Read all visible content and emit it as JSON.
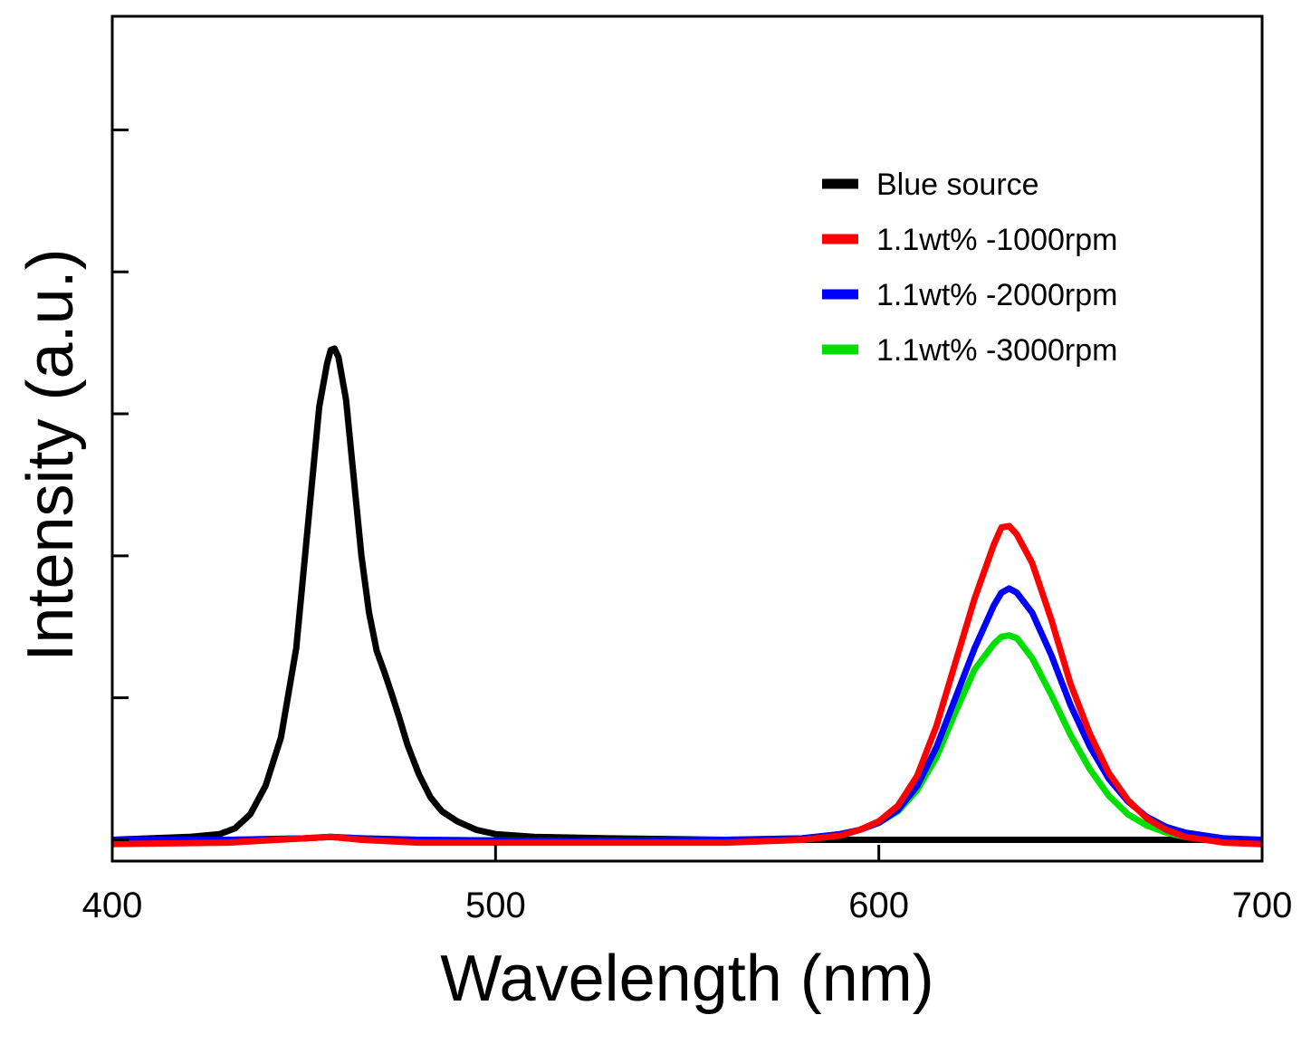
{
  "chart_data": {
    "type": "line",
    "xlabel": "Wavelength (nm)",
    "ylabel": "Intensity (a.u.)",
    "xlim": [
      400,
      700
    ],
    "ylim": [
      -0.15,
      5.8
    ],
    "x_ticks": [
      400,
      500,
      600,
      700
    ],
    "y_ticks": [
      0,
      1,
      2,
      3,
      4,
      5
    ],
    "y_tick_labels_shown": false,
    "grid": false,
    "legend_position": "top-right",
    "series": [
      {
        "name": "Blue source",
        "color": "#000000",
        "x": [
          400,
          410,
          420,
          428,
          432,
          436,
          440,
          444,
          448,
          451,
          454,
          456,
          457,
          458,
          459,
          461,
          463,
          465,
          467,
          469,
          471,
          473,
          475,
          477,
          480,
          483,
          486,
          490,
          495,
          500,
          510,
          530,
          560,
          600,
          650,
          700
        ],
        "y": [
          0,
          0.01,
          0.02,
          0.04,
          0.08,
          0.18,
          0.38,
          0.72,
          1.35,
          2.2,
          3.05,
          3.35,
          3.45,
          3.46,
          3.4,
          3.1,
          2.55,
          2.0,
          1.6,
          1.33,
          1.18,
          1.02,
          0.85,
          0.67,
          0.46,
          0.3,
          0.2,
          0.13,
          0.07,
          0.04,
          0.02,
          0.01,
          0.0,
          0.0,
          0.0,
          0.0
        ]
      },
      {
        "name": "1.1wt% -1000rpm",
        "color": "#ff0000",
        "x": [
          400,
          430,
          450,
          457,
          465,
          480,
          520,
          560,
          580,
          590,
          595,
          600,
          605,
          610,
          615,
          620,
          625,
          630,
          632,
          634,
          636,
          640,
          645,
          650,
          655,
          660,
          665,
          670,
          675,
          680,
          690,
          700
        ],
        "y": [
          -0.03,
          -0.02,
          0.01,
          0.02,
          0.0,
          -0.02,
          -0.02,
          -0.02,
          0.0,
          0.03,
          0.07,
          0.13,
          0.24,
          0.45,
          0.8,
          1.25,
          1.7,
          2.08,
          2.2,
          2.21,
          2.15,
          1.95,
          1.55,
          1.1,
          0.75,
          0.47,
          0.28,
          0.15,
          0.07,
          0.02,
          -0.02,
          -0.03
        ]
      },
      {
        "name": "1.1wt% -2000rpm",
        "color": "#0000ff",
        "x": [
          400,
          430,
          450,
          457,
          465,
          480,
          520,
          560,
          580,
          590,
          595,
          600,
          605,
          610,
          615,
          620,
          625,
          630,
          632,
          634,
          636,
          640,
          645,
          650,
          655,
          660,
          665,
          670,
          675,
          680,
          690,
          700
        ],
        "y": [
          0.0,
          0.0,
          0.01,
          0.02,
          0.01,
          0.0,
          -0.01,
          0.0,
          0.01,
          0.04,
          0.07,
          0.12,
          0.21,
          0.38,
          0.65,
          1.0,
          1.35,
          1.65,
          1.74,
          1.77,
          1.74,
          1.6,
          1.3,
          0.95,
          0.66,
          0.43,
          0.27,
          0.16,
          0.09,
          0.05,
          0.01,
          0.0
        ]
      },
      {
        "name": "1.1wt% -3000rpm",
        "color": "#00e000",
        "x": [
          400,
          430,
          450,
          457,
          465,
          480,
          520,
          560,
          580,
          590,
          595,
          600,
          605,
          610,
          615,
          620,
          625,
          630,
          632,
          634,
          636,
          640,
          645,
          650,
          655,
          660,
          665,
          670,
          675,
          680,
          690,
          700
        ],
        "y": [
          0.0,
          0.0,
          0.01,
          0.02,
          0.01,
          0.0,
          -0.01,
          0.0,
          0.01,
          0.04,
          0.07,
          0.12,
          0.2,
          0.35,
          0.58,
          0.9,
          1.2,
          1.38,
          1.43,
          1.44,
          1.42,
          1.28,
          1.02,
          0.74,
          0.5,
          0.31,
          0.18,
          0.1,
          0.05,
          0.02,
          0.0,
          0.0
        ]
      }
    ]
  }
}
